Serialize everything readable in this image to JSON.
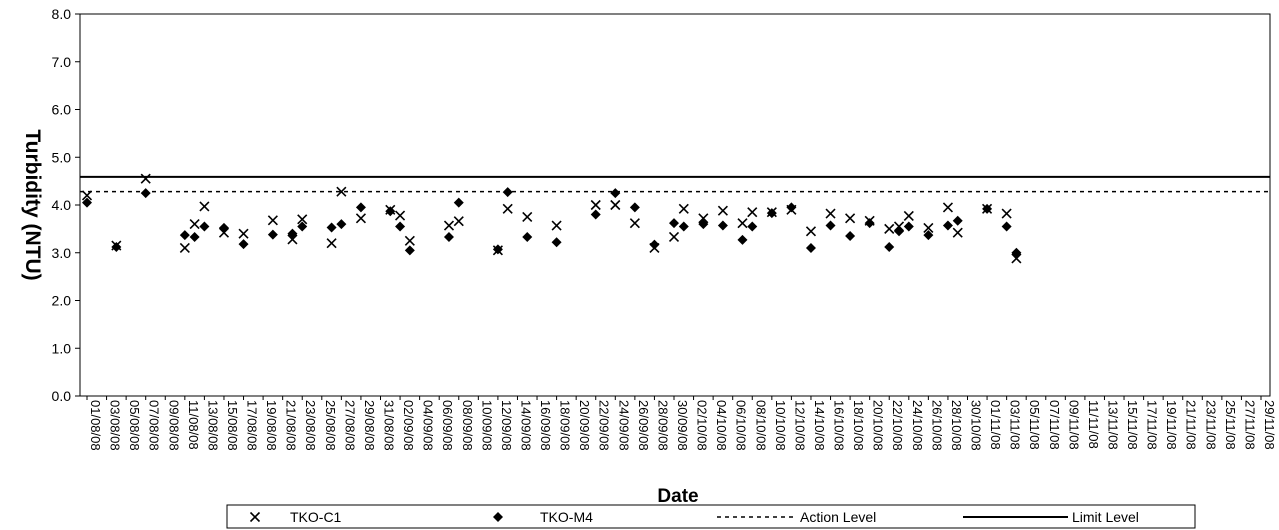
{
  "chart_data": {
    "type": "scatter",
    "title": "",
    "xlabel": "Date",
    "ylabel": "Turbidity (NTU)",
    "ylim": [
      0,
      8
    ],
    "yticks": [
      "0.0",
      "1.0",
      "2.0",
      "3.0",
      "4.0",
      "5.0",
      "6.0",
      "7.0",
      "8.0"
    ],
    "xlim": [
      "2008-08-01",
      "2008-11-29"
    ],
    "xtick_labels": [
      "01/08/08",
      "03/08/08",
      "05/08/08",
      "07/08/08",
      "09/08/08",
      "11/08/08",
      "13/08/08",
      "15/08/08",
      "17/08/08",
      "19/08/08",
      "21/08/08",
      "23/08/08",
      "25/08/08",
      "27/08/08",
      "29/08/08",
      "31/08/08",
      "02/09/08",
      "04/09/08",
      "06/09/08",
      "08/09/08",
      "10/09/08",
      "12/09/08",
      "14/09/08",
      "16/09/08",
      "18/09/08",
      "20/09/08",
      "22/09/08",
      "24/09/08",
      "26/09/08",
      "28/09/08",
      "30/09/08",
      "02/10/08",
      "04/10/08",
      "06/10/08",
      "08/10/08",
      "10/10/08",
      "12/10/08",
      "14/10/08",
      "16/10/08",
      "18/10/08",
      "20/10/08",
      "22/10/08",
      "24/10/08",
      "26/10/08",
      "28/10/08",
      "30/10/08",
      "01/11/08",
      "03/11/08",
      "05/11/08",
      "07/11/08",
      "09/11/08",
      "11/11/08",
      "13/11/08",
      "15/11/08",
      "17/11/08",
      "19/11/08",
      "21/11/08",
      "23/11/08",
      "25/11/08",
      "27/11/08",
      "29/11/08"
    ],
    "grid": false,
    "legend_position": "bottom",
    "series": [
      {
        "name": "TKO-C1",
        "marker": "x",
        "color": "#000000",
        "points": [
          [
            "2008-08-01",
            4.2
          ],
          [
            "2008-08-04",
            3.15
          ],
          [
            "2008-08-07",
            4.55
          ],
          [
            "2008-08-11",
            3.1
          ],
          [
            "2008-08-12",
            3.6
          ],
          [
            "2008-08-13",
            3.97
          ],
          [
            "2008-08-15",
            3.42
          ],
          [
            "2008-08-17",
            3.4
          ],
          [
            "2008-08-20",
            3.68
          ],
          [
            "2008-08-22",
            3.28
          ],
          [
            "2008-08-23",
            3.7
          ],
          [
            "2008-08-26",
            3.2
          ],
          [
            "2008-08-27",
            4.28
          ],
          [
            "2008-08-29",
            3.72
          ],
          [
            "2008-09-01",
            3.9
          ],
          [
            "2008-09-02",
            3.78
          ],
          [
            "2008-09-03",
            3.25
          ],
          [
            "2008-09-07",
            3.57
          ],
          [
            "2008-09-08",
            3.66
          ],
          [
            "2008-09-12",
            3.05
          ],
          [
            "2008-09-13",
            3.92
          ],
          [
            "2008-09-15",
            3.75
          ],
          [
            "2008-09-18",
            3.57
          ],
          [
            "2008-09-22",
            4.0
          ],
          [
            "2008-09-24",
            4.0
          ],
          [
            "2008-09-26",
            3.62
          ],
          [
            "2008-09-28",
            3.1
          ],
          [
            "2008-09-30",
            3.33
          ],
          [
            "2008-10-01",
            3.92
          ],
          [
            "2008-10-03",
            3.72
          ],
          [
            "2008-10-05",
            3.88
          ],
          [
            "2008-10-07",
            3.62
          ],
          [
            "2008-10-08",
            3.85
          ],
          [
            "2008-10-10",
            3.85
          ],
          [
            "2008-10-12",
            3.9
          ],
          [
            "2008-10-14",
            3.45
          ],
          [
            "2008-10-16",
            3.82
          ],
          [
            "2008-10-18",
            3.72
          ],
          [
            "2008-10-20",
            3.67
          ],
          [
            "2008-10-22",
            3.5
          ],
          [
            "2008-10-23",
            3.55
          ],
          [
            "2008-10-24",
            3.77
          ],
          [
            "2008-10-26",
            3.52
          ],
          [
            "2008-10-28",
            3.95
          ],
          [
            "2008-10-29",
            3.42
          ],
          [
            "2008-11-01",
            3.92
          ],
          [
            "2008-11-03",
            3.82
          ],
          [
            "2008-11-04",
            2.88
          ]
        ]
      },
      {
        "name": "TKO-M4",
        "marker": "diamond",
        "color": "#000000",
        "points": [
          [
            "2008-08-01",
            4.05
          ],
          [
            "2008-08-04",
            3.12
          ],
          [
            "2008-08-07",
            4.25
          ],
          [
            "2008-08-11",
            3.37
          ],
          [
            "2008-08-12",
            3.33
          ],
          [
            "2008-08-13",
            3.55
          ],
          [
            "2008-08-15",
            3.52
          ],
          [
            "2008-08-17",
            3.18
          ],
          [
            "2008-08-20",
            3.38
          ],
          [
            "2008-08-22",
            3.4
          ],
          [
            "2008-08-23",
            3.55
          ],
          [
            "2008-08-26",
            3.53
          ],
          [
            "2008-08-27",
            3.6
          ],
          [
            "2008-08-29",
            3.95
          ],
          [
            "2008-09-01",
            3.87
          ],
          [
            "2008-09-02",
            3.55
          ],
          [
            "2008-09-03",
            3.05
          ],
          [
            "2008-09-07",
            3.33
          ],
          [
            "2008-09-08",
            4.05
          ],
          [
            "2008-09-12",
            3.07
          ],
          [
            "2008-09-13",
            4.27
          ],
          [
            "2008-09-15",
            3.33
          ],
          [
            "2008-09-18",
            3.22
          ],
          [
            "2008-09-22",
            3.8
          ],
          [
            "2008-09-24",
            4.25
          ],
          [
            "2008-09-26",
            3.95
          ],
          [
            "2008-09-28",
            3.17
          ],
          [
            "2008-09-30",
            3.62
          ],
          [
            "2008-10-01",
            3.55
          ],
          [
            "2008-10-03",
            3.6
          ],
          [
            "2008-10-05",
            3.57
          ],
          [
            "2008-10-07",
            3.27
          ],
          [
            "2008-10-08",
            3.55
          ],
          [
            "2008-10-10",
            3.83
          ],
          [
            "2008-10-12",
            3.95
          ],
          [
            "2008-10-14",
            3.1
          ],
          [
            "2008-10-16",
            3.57
          ],
          [
            "2008-10-18",
            3.35
          ],
          [
            "2008-10-20",
            3.62
          ],
          [
            "2008-10-22",
            3.12
          ],
          [
            "2008-10-23",
            3.45
          ],
          [
            "2008-10-24",
            3.55
          ],
          [
            "2008-10-26",
            3.37
          ],
          [
            "2008-10-28",
            3.57
          ],
          [
            "2008-10-29",
            3.67
          ],
          [
            "2008-11-01",
            3.92
          ],
          [
            "2008-11-03",
            3.55
          ],
          [
            "2008-11-04",
            3.0
          ]
        ]
      },
      {
        "name": "Action Level",
        "type": "line",
        "style": "dashed",
        "color": "#000000",
        "value": 4.28
      },
      {
        "name": "Limit Level",
        "type": "line",
        "style": "solid",
        "color": "#000000",
        "value": 4.59
      }
    ]
  }
}
